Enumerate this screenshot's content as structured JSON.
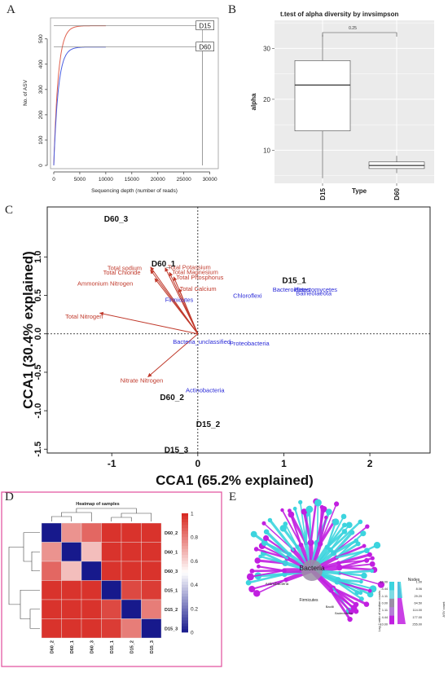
{
  "panel_letters": [
    "A",
    "B",
    "C",
    "D",
    "E"
  ],
  "chart_data": [
    {
      "panel": "A",
      "type": "line",
      "xlabel": "Sequencing depth (number of reads)",
      "ylabel": "No. of ASV",
      "xlim": [
        0,
        31000
      ],
      "ylim": [
        0,
        570
      ],
      "x_ticks": [
        0,
        5000,
        10000,
        15000,
        20000,
        25000,
        30000
      ],
      "y_ticks": [
        0,
        100,
        200,
        300,
        400,
        500
      ],
      "x_tick_labels": [
        "0",
        "5000",
        "10000",
        "15000",
        "20000",
        "25000",
        "30000"
      ],
      "y_tick_labels": [
        "0",
        "100",
        "200",
        "300",
        "400",
        "500"
      ],
      "series": [
        {
          "name": "D15",
          "color": "#e0614f",
          "asymptote": 552,
          "x_end": 10000,
          "ref_x": 28600
        },
        {
          "name": "D60",
          "color": "#4a5ee0",
          "asymptote": 468,
          "x_end": 10000,
          "ref_x": 28600
        }
      ],
      "label_color": "#222222"
    },
    {
      "panel": "B",
      "type": "box",
      "title": "t.test of alpha diversity  by invsimpson",
      "xlabel": "Type",
      "ylabel": "alpha",
      "categories": [
        "D15",
        "D60"
      ],
      "ylim": [
        3.5,
        35.5
      ],
      "y_ticks": [
        10,
        20,
        30
      ],
      "y_tick_labels": [
        "10",
        "20",
        "30"
      ],
      "boxes": [
        {
          "min": 4.5,
          "q1": 13.8,
          "median": 22.8,
          "q3": 27.6,
          "max": 32.7
        },
        {
          "min": 5.5,
          "q1": 6.4,
          "median": 7.0,
          "q3": 7.7,
          "max": 8.9
        }
      ],
      "p_value": "0.25",
      "background": "#ebebeb"
    },
    {
      "panel": "C",
      "type": "scatter",
      "xlabel": "CCA1 (65.2% explained)",
      "ylabel": "CCA1 (30.4% explained)",
      "xlim": [
        -1.75,
        2.7
      ],
      "ylim": [
        -1.55,
        1.65
      ],
      "x_ticks": [
        -1,
        0,
        1,
        2
      ],
      "y_ticks": [
        -1.5,
        -1.0,
        -0.5,
        0.0,
        0.5,
        1.0
      ],
      "x_tick_labels": [
        "-1",
        "0",
        "1",
        "2"
      ],
      "y_tick_labels": [
        "-1.5",
        "-1.0",
        "-0.5",
        "0.0",
        "0.5",
        "1.0"
      ],
      "samples": [
        {
          "label": "D60_3",
          "x": -0.95,
          "y": 1.5
        },
        {
          "label": "D60_1",
          "x": -0.4,
          "y": 0.92
        },
        {
          "label": "D60_2",
          "x": -0.3,
          "y": -0.82
        },
        {
          "label": "D15_1",
          "x": 1.12,
          "y": 0.7
        },
        {
          "label": "D15_2",
          "x": 0.12,
          "y": -1.17
        },
        {
          "label": "D15_3",
          "x": -0.25,
          "y": -1.5
        }
      ],
      "env_vectors": [
        {
          "label": "Total sodium",
          "x": -0.55,
          "y": 0.87,
          "lx": -1.05,
          "ly": 0.86
        },
        {
          "label": "Total Chloride",
          "x": -0.55,
          "y": 0.83,
          "lx": -1.1,
          "ly": 0.8
        },
        {
          "label": "Ammonium Nitrogen",
          "x": -0.5,
          "y": 0.72,
          "lx": -1.4,
          "ly": 0.66
        },
        {
          "label": "Total Potassium",
          "x": -0.38,
          "y": 0.86,
          "lx": -0.35,
          "ly": 0.87
        },
        {
          "label": "Total Magnesium",
          "x": -0.33,
          "y": 0.8,
          "lx": -0.3,
          "ly": 0.81
        },
        {
          "label": "Total Phosphorus",
          "x": -0.28,
          "y": 0.74,
          "lx": -0.25,
          "ly": 0.74
        },
        {
          "label": "Total Calcium",
          "x": -0.22,
          "y": 0.59,
          "lx": -0.21,
          "ly": 0.59
        },
        {
          "label": "Total Nitrogen",
          "x": -1.14,
          "y": 0.27,
          "lx": -1.54,
          "ly": 0.23
        },
        {
          "label": "Nitrate Nitrogen",
          "x": -0.58,
          "y": -0.56,
          "lx": -0.9,
          "ly": -0.6
        }
      ],
      "species": [
        {
          "label": "Firmicutes",
          "x": -0.38,
          "y": 0.45
        },
        {
          "label": "Chloroflexi",
          "x": 0.41,
          "y": 0.5
        },
        {
          "label": "Bacteroidetes",
          "x": 0.87,
          "y": 0.58
        },
        {
          "label": "Planctomycetes",
          "x": 1.12,
          "y": 0.58
        },
        {
          "label": "Balneolaeota",
          "x": 1.14,
          "y": 0.53
        },
        {
          "label": "Bacteria_unclassified",
          "x": -0.29,
          "y": -0.1
        },
        {
          "label": "Proteobacteria",
          "x": 0.37,
          "y": -0.12
        },
        {
          "label": "Actinobacteria",
          "x": -0.14,
          "y": -0.73
        }
      ],
      "vector_color": "#c0392b",
      "species_color": "#2a2ad8",
      "sample_color": "#111111"
    },
    {
      "panel": "D",
      "type": "heatmap",
      "title": "Heatmap of samples",
      "row_labels": [
        "D60_2",
        "D60_1",
        "D60_3",
        "D15_1",
        "D15_2",
        "D15_3"
      ],
      "col_labels": [
        "D60_2",
        "D60_1",
        "D60_3",
        "D15_1",
        "D15_2",
        "D15_3"
      ],
      "matrix": [
        [
          0.0,
          0.75,
          0.85,
          0.97,
          0.97,
          0.97
        ],
        [
          0.75,
          0.0,
          0.65,
          0.97,
          0.97,
          0.97
        ],
        [
          0.85,
          0.65,
          0.0,
          0.97,
          0.97,
          0.97
        ],
        [
          0.97,
          0.97,
          0.97,
          0.0,
          0.92,
          0.95
        ],
        [
          0.97,
          0.97,
          0.97,
          0.92,
          0.0,
          0.8
        ],
        [
          0.97,
          0.97,
          0.97,
          0.95,
          0.8,
          0.0
        ]
      ],
      "colorbar_ticks": [
        0,
        0.2,
        0.4,
        0.6,
        0.8,
        1
      ],
      "colorbar_tick_labels": [
        "0",
        "0.2",
        "0.4",
        "0.6",
        "0.8",
        "1"
      ],
      "colors": {
        "low": "#17198c",
        "mid": "#ffffff",
        "high": "#d7261e"
      }
    },
    {
      "panel": "E",
      "type": "tree",
      "root_label": "Bacteria",
      "node_labels": [
        "Actinobacteria",
        "Firmicutes",
        "Bacilli",
        "Bacteroidetes"
      ],
      "legend": {
        "color_title": "Log 2 ratio of median counts",
        "color_values": [
          "-10.00",
          "-4.44",
          "-1.11",
          "0.00",
          "1.11",
          "4.44",
          "10.00"
        ],
        "nodes_title": "Nodes",
        "size_title": "ASV count",
        "size_values": [
          "1.00",
          "8.06",
          "29.20",
          "64.50",
          "114.00",
          "177.00",
          "255.00"
        ]
      },
      "colors": {
        "cyan": "#3cd4de",
        "magenta": "#c11fe0",
        "grey": "#9b8ea6"
      }
    }
  ]
}
